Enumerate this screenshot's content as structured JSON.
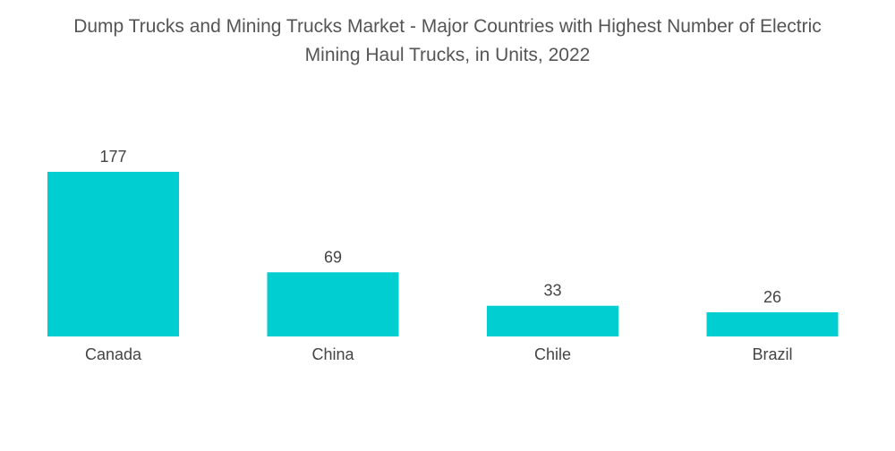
{
  "chart_data": {
    "type": "bar",
    "title_lines": [
      "Dump Trucks and Mining Trucks Market - Major Countries with Highest Number of Electric",
      "Mining Haul Trucks, in Units, 2022"
    ],
    "categories": [
      "Canada",
      "China",
      "Chile",
      "Brazil"
    ],
    "values": [
      177,
      69,
      33,
      26
    ],
    "data_labels": [
      "177",
      "69",
      "33",
      "26"
    ],
    "xlabel": "",
    "ylabel": "",
    "ylim": [
      0,
      177
    ],
    "grid": false,
    "legend": "none",
    "bar_color": "#00CED1"
  }
}
